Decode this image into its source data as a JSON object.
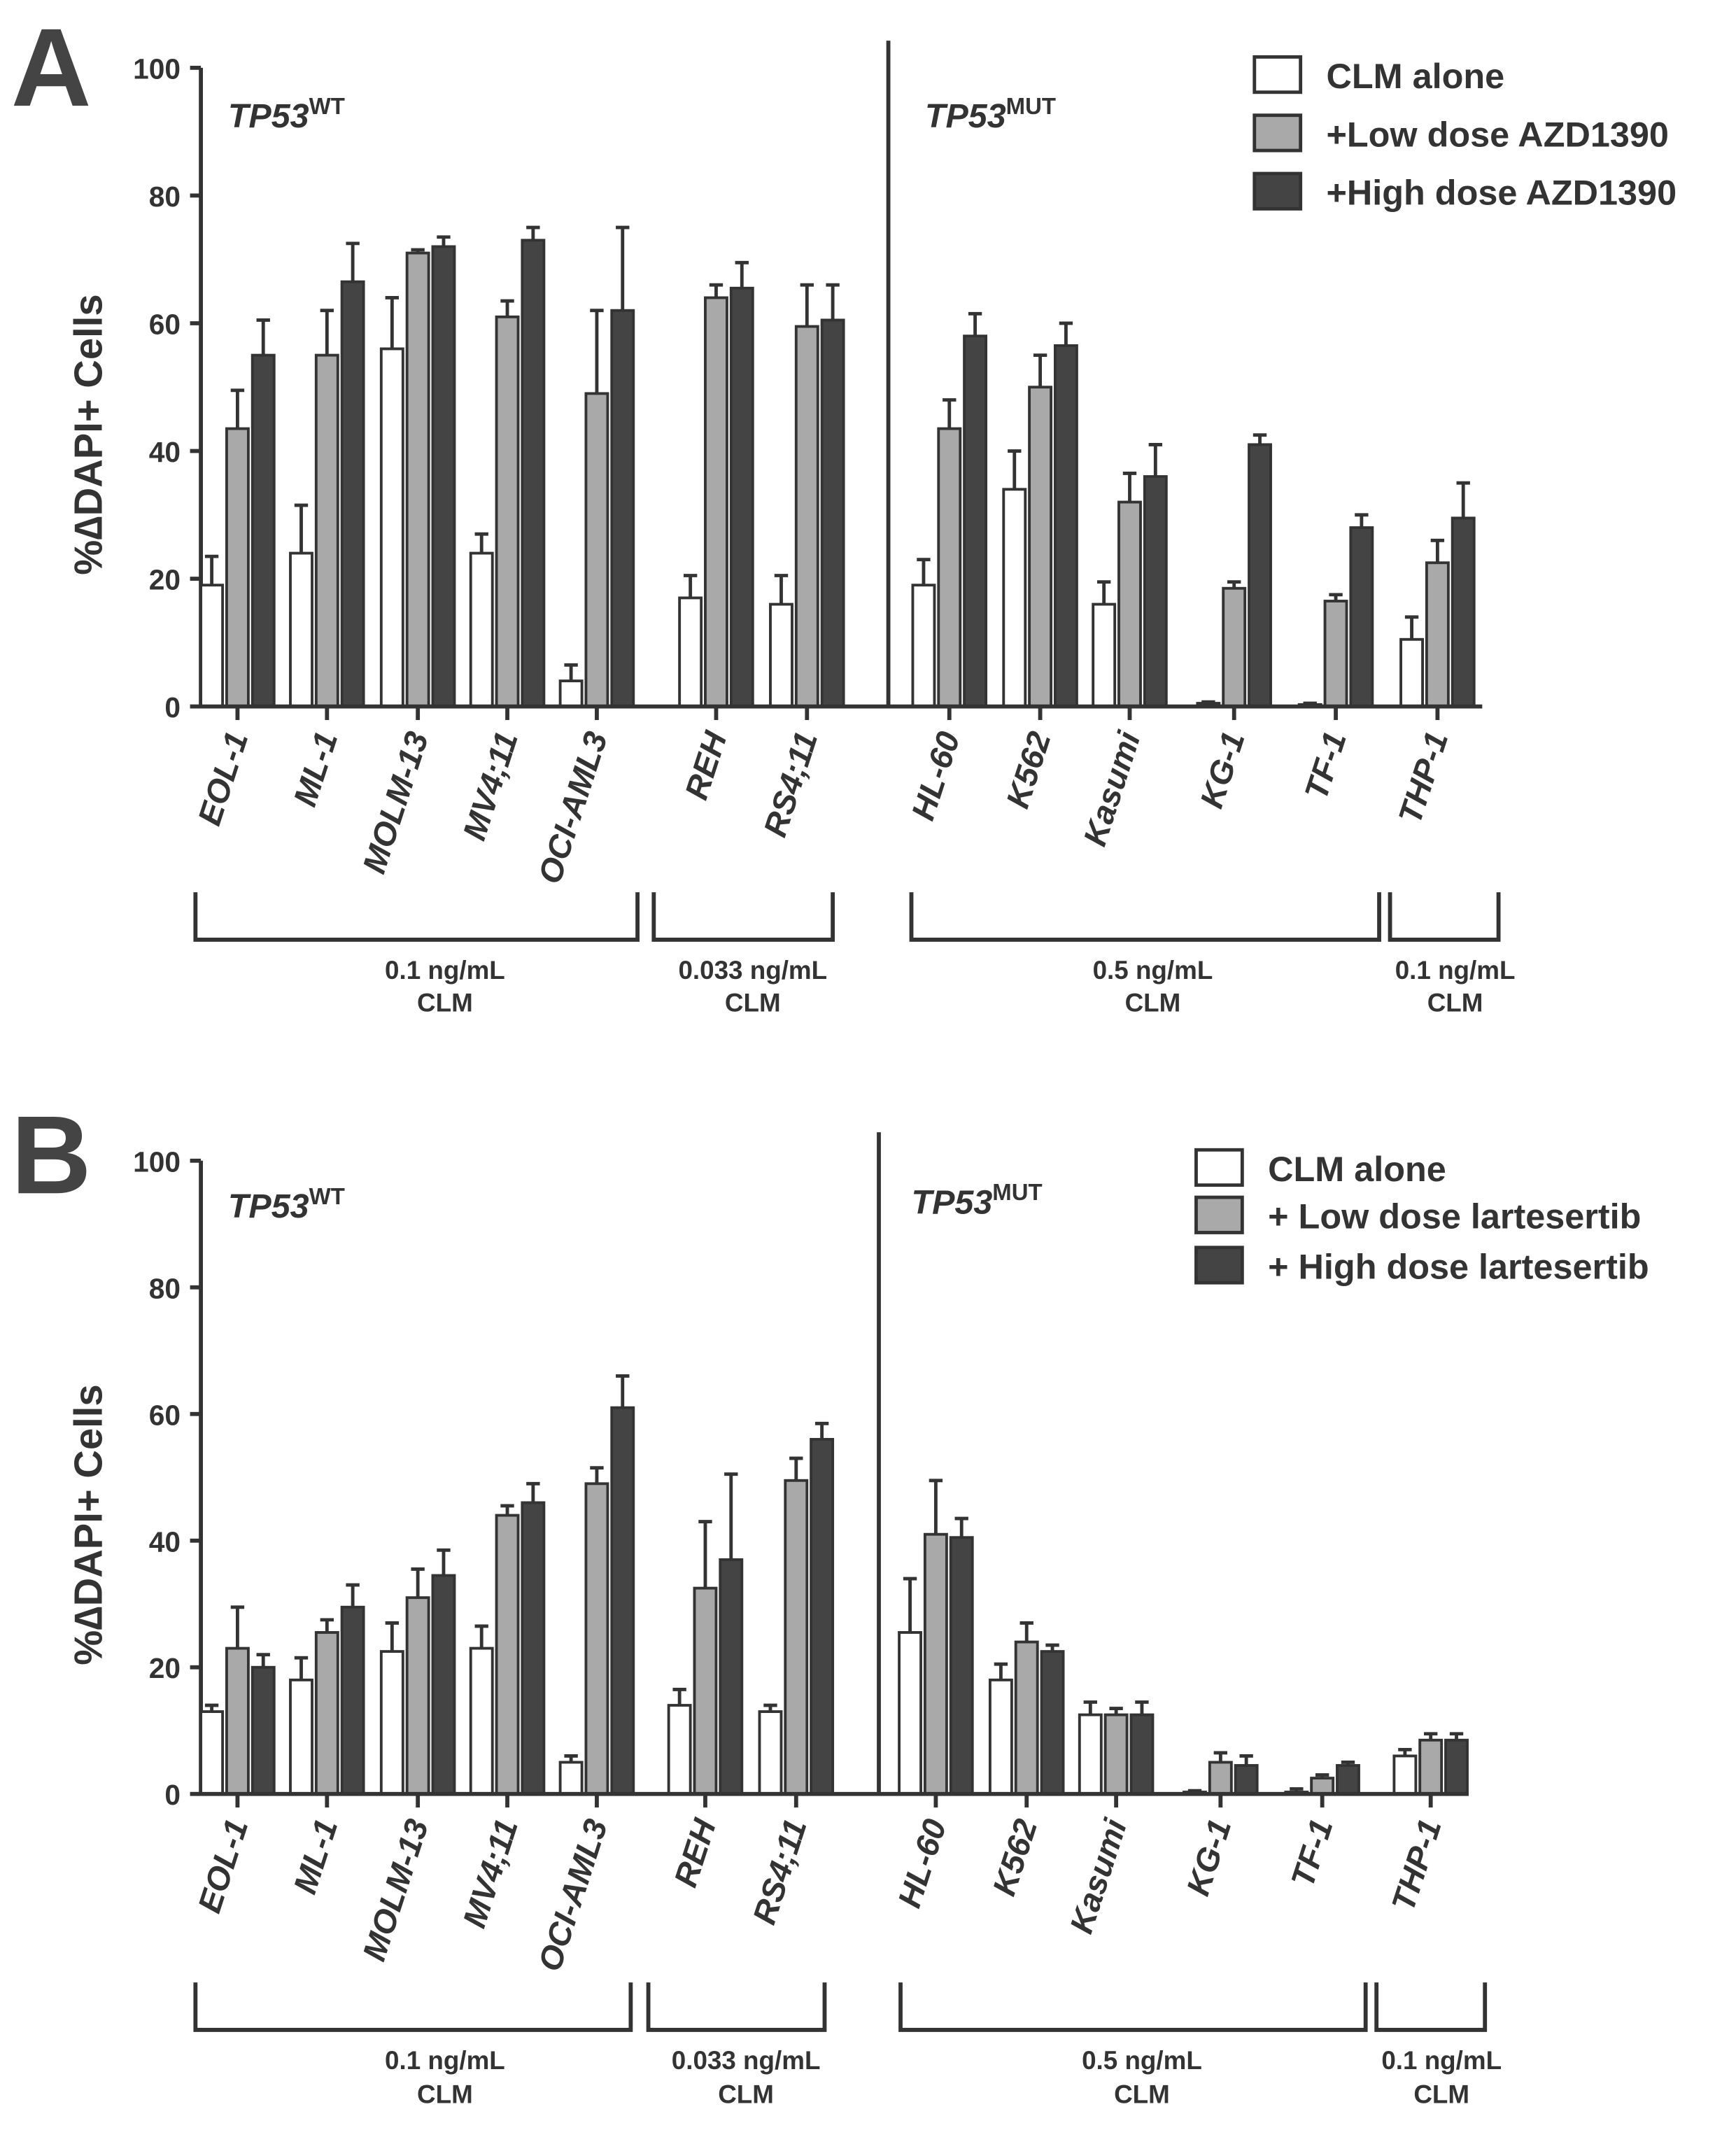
{
  "colors": {
    "clm": "#ffffff",
    "low": "#a9a9a9",
    "high": "#444444",
    "axis": "#333333"
  },
  "chart_data": [
    {
      "type": "bar",
      "panel_letter": "A",
      "ylabel": "%∆DAPI+ Cells",
      "ylim": [
        0,
        100
      ],
      "yticks": [
        "0",
        "20",
        "40",
        "60",
        "80",
        "100"
      ],
      "groups": [
        {
          "base": "TP53",
          "sup": "WT"
        },
        {
          "base": "TP53",
          "sup": "MUT"
        }
      ],
      "categories": [
        "EOL-1",
        "ML-1",
        "MOLM-13",
        "MV4;11",
        "OCI-AML3",
        "REH",
        "RS4;11",
        "HL-60",
        "K562",
        "Kasumi",
        "KG-1",
        "TF-1",
        "THP-1"
      ],
      "series": [
        {
          "name": "CLM alone",
          "values": [
            19,
            24,
            56,
            24,
            4,
            17,
            16,
            19,
            34,
            16,
            0.5,
            0.3,
            10.5
          ],
          "err_top": [
            23.5,
            31.5,
            64,
            27,
            6.5,
            20.5,
            20.5,
            23,
            40,
            19.5,
            0.7,
            0.5,
            14
          ]
        },
        {
          "name": "+Low dose AZD1390",
          "values": [
            43.5,
            55,
            71,
            61,
            49,
            64,
            59.5,
            43.5,
            50,
            32,
            18.5,
            16.5,
            22.5
          ],
          "err_top": [
            49.5,
            62,
            71.5,
            63.5,
            62,
            66,
            66,
            48,
            55,
            36.5,
            19.5,
            17.5,
            26
          ]
        },
        {
          "name": "+High dose AZD1390",
          "values": [
            55,
            66.5,
            72,
            73,
            62,
            65.5,
            60.5,
            58,
            56.5,
            36,
            41,
            28,
            29.5
          ],
          "err_top": [
            60.5,
            72.5,
            73.5,
            75,
            75,
            69.5,
            66,
            61.5,
            60,
            41,
            42.5,
            30,
            35
          ]
        }
      ],
      "concentrations": [
        {
          "line1": "0.1 ng/mL",
          "line2": "CLM"
        },
        {
          "line1": "0.033 ng/mL",
          "line2": "CLM"
        },
        {
          "line1": "0.5 ng/mL",
          "line2": "CLM"
        },
        {
          "line1": "0.1 ng/mL",
          "line2": "CLM"
        }
      ],
      "legend_position": "top-right"
    },
    {
      "type": "bar",
      "panel_letter": "B",
      "ylabel": "%∆DAPI+ Cells",
      "ylim": [
        0,
        100
      ],
      "yticks": [
        "0",
        "20",
        "40",
        "60",
        "80",
        "100"
      ],
      "groups": [
        {
          "base": "TP53",
          "sup": "WT"
        },
        {
          "base": "TP53",
          "sup": "MUT"
        }
      ],
      "categories": [
        "EOL-1",
        "ML-1",
        "MOLM-13",
        "MV4;11",
        "OCI-AML3",
        "REH",
        "RS4;11",
        "HL-60",
        "K562",
        "Kasumi",
        "KG-1",
        "TF-1",
        "THP-1"
      ],
      "series": [
        {
          "name": "CLM alone",
          "values": [
            13,
            18,
            22.5,
            23,
            5,
            14,
            13,
            25.5,
            18,
            12.5,
            0.3,
            0.3,
            6
          ],
          "err_top": [
            14,
            21.5,
            27,
            26.5,
            6,
            16.5,
            14,
            34,
            20.5,
            14.5,
            0.5,
            0.8,
            7
          ]
        },
        {
          "name": "+ Low dose lartesertib",
          "values": [
            23,
            25.5,
            31,
            44,
            49,
            32.5,
            49.5,
            41,
            24,
            12.5,
            5,
            2.5,
            8.5
          ],
          "err_top": [
            29.5,
            27.5,
            35.5,
            45.5,
            51.5,
            43,
            53,
            49.5,
            27,
            13.5,
            6.5,
            3,
            9.5
          ]
        },
        {
          "name": "+ High dose lartesertib",
          "values": [
            20,
            29.5,
            34.5,
            46,
            61,
            37,
            56,
            40.5,
            22.5,
            12.5,
            4.5,
            4.5,
            8.5
          ],
          "err_top": [
            22,
            33,
            38.5,
            49,
            66,
            50.5,
            58.5,
            43.5,
            23.5,
            14.5,
            6,
            5,
            9.5
          ]
        }
      ],
      "concentrations": [
        {
          "line1": "0.1 ng/mL",
          "line2": "CLM"
        },
        {
          "line1": "0.033 ng/mL",
          "line2": "CLM"
        },
        {
          "line1": "0.5 ng/mL",
          "line2": "CLM"
        },
        {
          "line1": "0.1 ng/mL",
          "line2": "CLM"
        }
      ],
      "legend_position": "top-right"
    }
  ]
}
